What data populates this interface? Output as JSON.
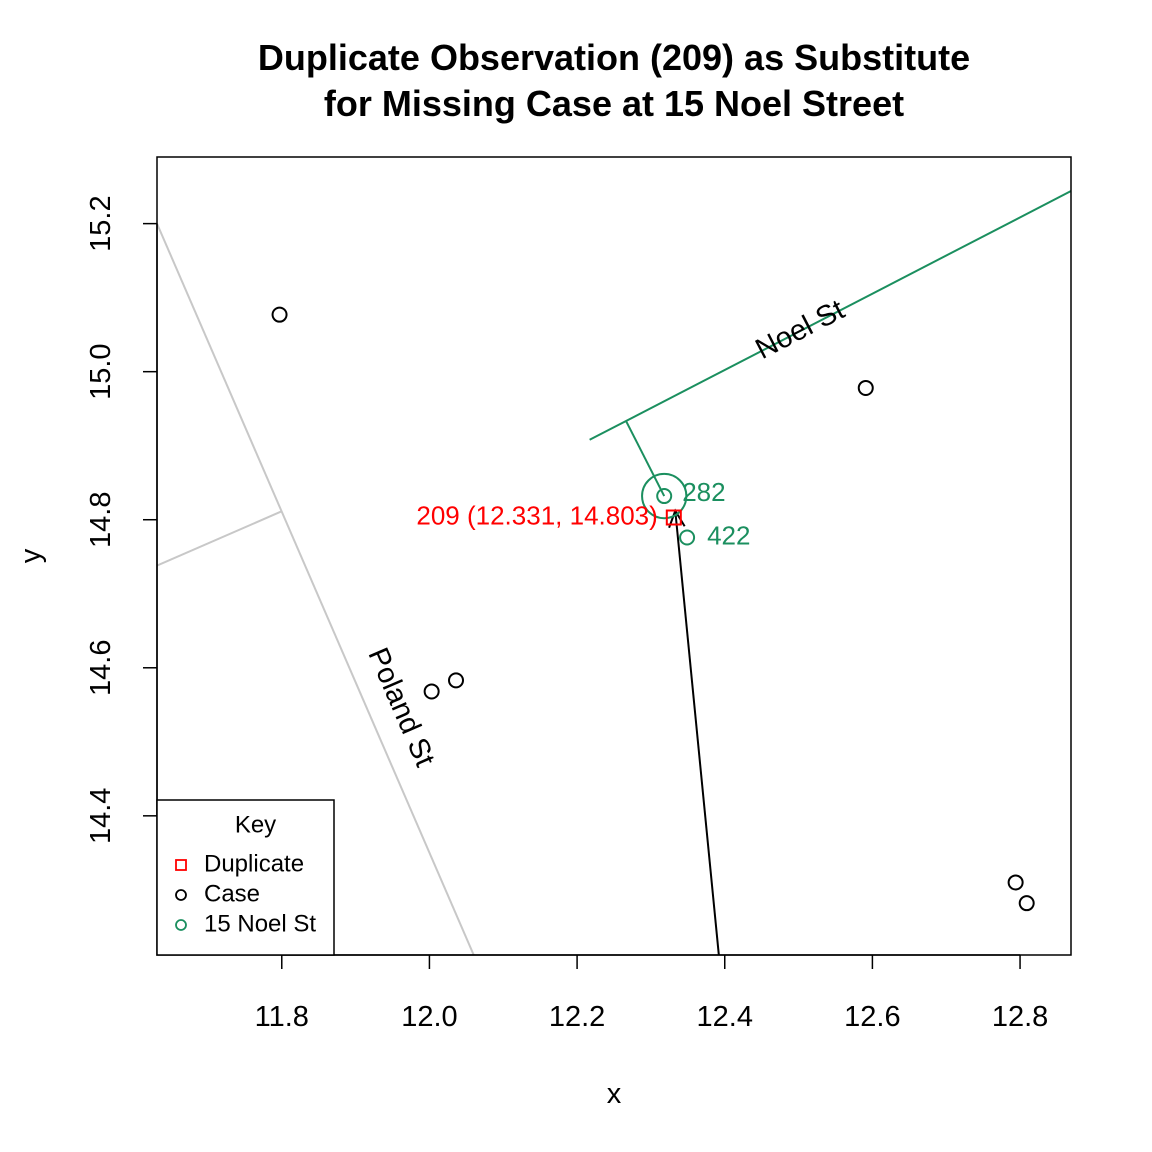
{
  "colors": {
    "duplicate": "#ff0000",
    "case": "#000000",
    "noel": "#1b8f5f",
    "road_gray": "#c8c8c8",
    "arrow": "#000000"
  },
  "chart_data": {
    "type": "scatter",
    "title_line1": "Duplicate Observation (209) as Substitute",
    "title_line2": "for Missing Case at 15 Noel Street",
    "xlabel": "x",
    "ylabel": "y",
    "xlim": [
      11.631,
      12.869
    ],
    "ylim": [
      14.212,
      15.29
    ],
    "xticks": [
      11.8,
      12.0,
      12.2,
      12.4,
      12.6,
      12.8
    ],
    "xtick_labels": [
      "11.8",
      "12.0",
      "12.2",
      "12.4",
      "12.6",
      "12.8"
    ],
    "yticks": [
      14.4,
      14.6,
      14.8,
      15.0,
      15.2
    ],
    "ytick_labels": [
      "14.4",
      "14.6",
      "14.8",
      "15.0",
      "15.2"
    ],
    "grid": false,
    "cases": [
      {
        "x": 11.797,
        "y": 15.077
      },
      {
        "x": 12.003,
        "y": 14.568
      },
      {
        "x": 12.036,
        "y": 14.583
      },
      {
        "x": 12.591,
        "y": 14.978
      },
      {
        "x": 12.794,
        "y": 14.31
      },
      {
        "x": 12.809,
        "y": 14.282
      }
    ],
    "noel_points": [
      {
        "id": "282",
        "x": 12.318,
        "y": 14.832
      },
      {
        "id": "422",
        "x": 12.349,
        "y": 14.776
      }
    ],
    "duplicate": {
      "id": "209",
      "x": 12.331,
      "y": 14.803,
      "label": "209 (12.331, 14.803)"
    },
    "noel_highlight": {
      "x": 12.318,
      "y": 14.832,
      "radius": 0.03
    },
    "streets": [
      {
        "name": "Noel St",
        "label": "Noel St",
        "color_key": "noel",
        "x1": 12.217,
        "y1": 14.908,
        "x2": 12.869,
        "y2": 15.244,
        "label_x": 12.503,
        "label_y": 15.055
      },
      {
        "name": "Poland St",
        "label": "Poland St",
        "color_key": "road_gray",
        "x1": 11.631,
        "y1": 15.2,
        "x2": 12.06,
        "y2": 14.212,
        "label_x": 11.96,
        "label_y": 14.546
      }
    ],
    "connectors": [
      {
        "color_key": "road_gray",
        "x1": 11.631,
        "y1": 14.738,
        "x2": 11.799,
        "y2": 14.811
      },
      {
        "color_key": "noel",
        "x1": 12.266,
        "y1": 14.934,
        "x2": 12.318,
        "y2": 14.832
      }
    ],
    "arrow": {
      "x1": 12.392,
      "y1": 14.212,
      "x2": 12.333,
      "y2": 14.812
    },
    "legend": {
      "title": "Key",
      "position": "bottom-left",
      "items": [
        {
          "label": "Duplicate",
          "symbol": "square",
          "color_key": "duplicate"
        },
        {
          "label": "Case",
          "symbol": "circle",
          "color_key": "case"
        },
        {
          "label": "15 Noel St",
          "symbol": "circle",
          "color_key": "noel"
        }
      ]
    }
  }
}
